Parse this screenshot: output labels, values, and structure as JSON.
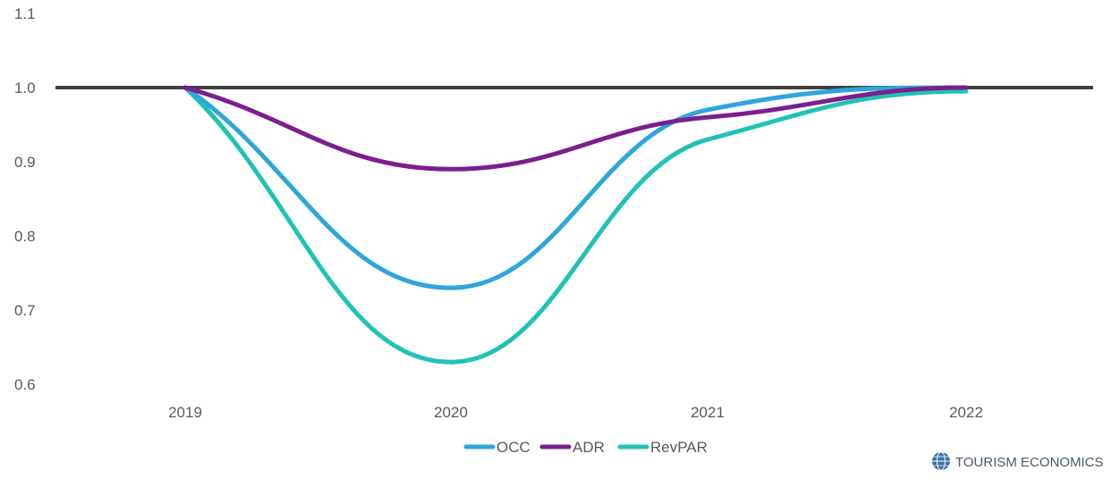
{
  "chart_data": {
    "type": "line",
    "categories": [
      "2019",
      "2020",
      "2021",
      "2022"
    ],
    "ylim": [
      0.6,
      1.1
    ],
    "yticks": [
      "0.6",
      "0.7",
      "0.8",
      "0.9",
      "1.0",
      "1.1"
    ],
    "reference_line": 1.0,
    "grid": false,
    "legend_position": "bottom",
    "series": [
      {
        "name": "OCC",
        "values": [
          1.0,
          0.73,
          0.97,
          1.0
        ]
      },
      {
        "name": "ADR",
        "values": [
          1.0,
          0.89,
          0.96,
          1.0
        ]
      },
      {
        "name": "RevPAR",
        "values": [
          1.0,
          0.63,
          0.93,
          0.995
        ]
      }
    ]
  },
  "colors": {
    "OCC": "#2ea5dc",
    "ADR": "#7b1f8e",
    "RevPAR": "#20c2b5",
    "reference_line": "#404040",
    "axis_text": "#595959"
  },
  "watermark": {
    "text": "TOURISM ECONOMICS",
    "icon": "globe-icon"
  }
}
